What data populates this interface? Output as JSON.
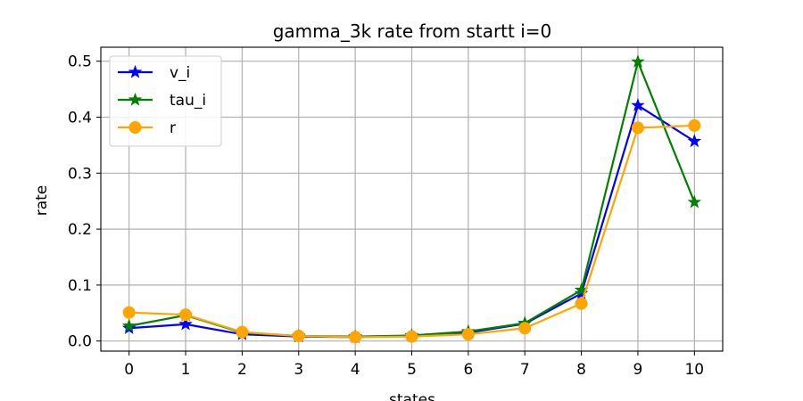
{
  "chart_data": {
    "type": "line",
    "title": "gamma_3k rate from startt i=0",
    "xlabel": "states",
    "ylabel": "rate",
    "x": [
      0,
      1,
      2,
      3,
      4,
      5,
      6,
      7,
      8,
      9,
      10
    ],
    "x_ticks": [
      "0",
      "1",
      "2",
      "3",
      "4",
      "5",
      "6",
      "7",
      "8",
      "9",
      "10"
    ],
    "y_ticks": [
      "0.0",
      "0.1",
      "0.2",
      "0.3",
      "0.4",
      "0.5"
    ],
    "xlim": [
      -0.5,
      10.5
    ],
    "ylim": [
      -0.018,
      0.525
    ],
    "grid": true,
    "legend_position": "upper left",
    "series": [
      {
        "name": "v_i",
        "color": "#0000ff",
        "marker": "star",
        "values": [
          0.023,
          0.03,
          0.012,
          0.008,
          0.007,
          0.009,
          0.015,
          0.031,
          0.085,
          0.421,
          0.357
        ]
      },
      {
        "name": "tau_i",
        "color": "#008000",
        "marker": "star",
        "values": [
          0.027,
          0.046,
          0.015,
          0.009,
          0.008,
          0.01,
          0.017,
          0.032,
          0.091,
          0.499,
          0.248
        ]
      },
      {
        "name": "r",
        "color": "#ffa500",
        "marker": "circle",
        "values": [
          0.051,
          0.047,
          0.016,
          0.009,
          0.007,
          0.008,
          0.012,
          0.023,
          0.067,
          0.381,
          0.385
        ]
      }
    ]
  }
}
